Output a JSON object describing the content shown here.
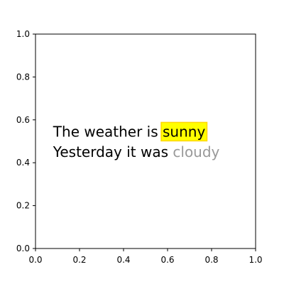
{
  "chart_data": {
    "type": "text",
    "title": "",
    "xlabel": "",
    "ylabel": "",
    "xlim": [
      0,
      1
    ],
    "ylim": [
      0,
      1
    ],
    "grid": false,
    "xticks": [
      "0.0",
      "0.2",
      "0.4",
      "0.6",
      "0.8",
      "1.0"
    ],
    "yticks": [
      "0.0",
      "0.2",
      "0.4",
      "0.6",
      "0.8",
      "1.0"
    ],
    "annotations": [
      {
        "prefix": "The weather is ",
        "highlight": "sunny",
        "highlight_bg": "#ffff00",
        "highlight_border": "#ffd700",
        "x": 0.08,
        "y": 0.545
      },
      {
        "prefix": "Yesterday it was ",
        "highlight": "cloudy",
        "highlight_color": "#999999",
        "x": 0.08,
        "y": 0.45
      }
    ]
  }
}
